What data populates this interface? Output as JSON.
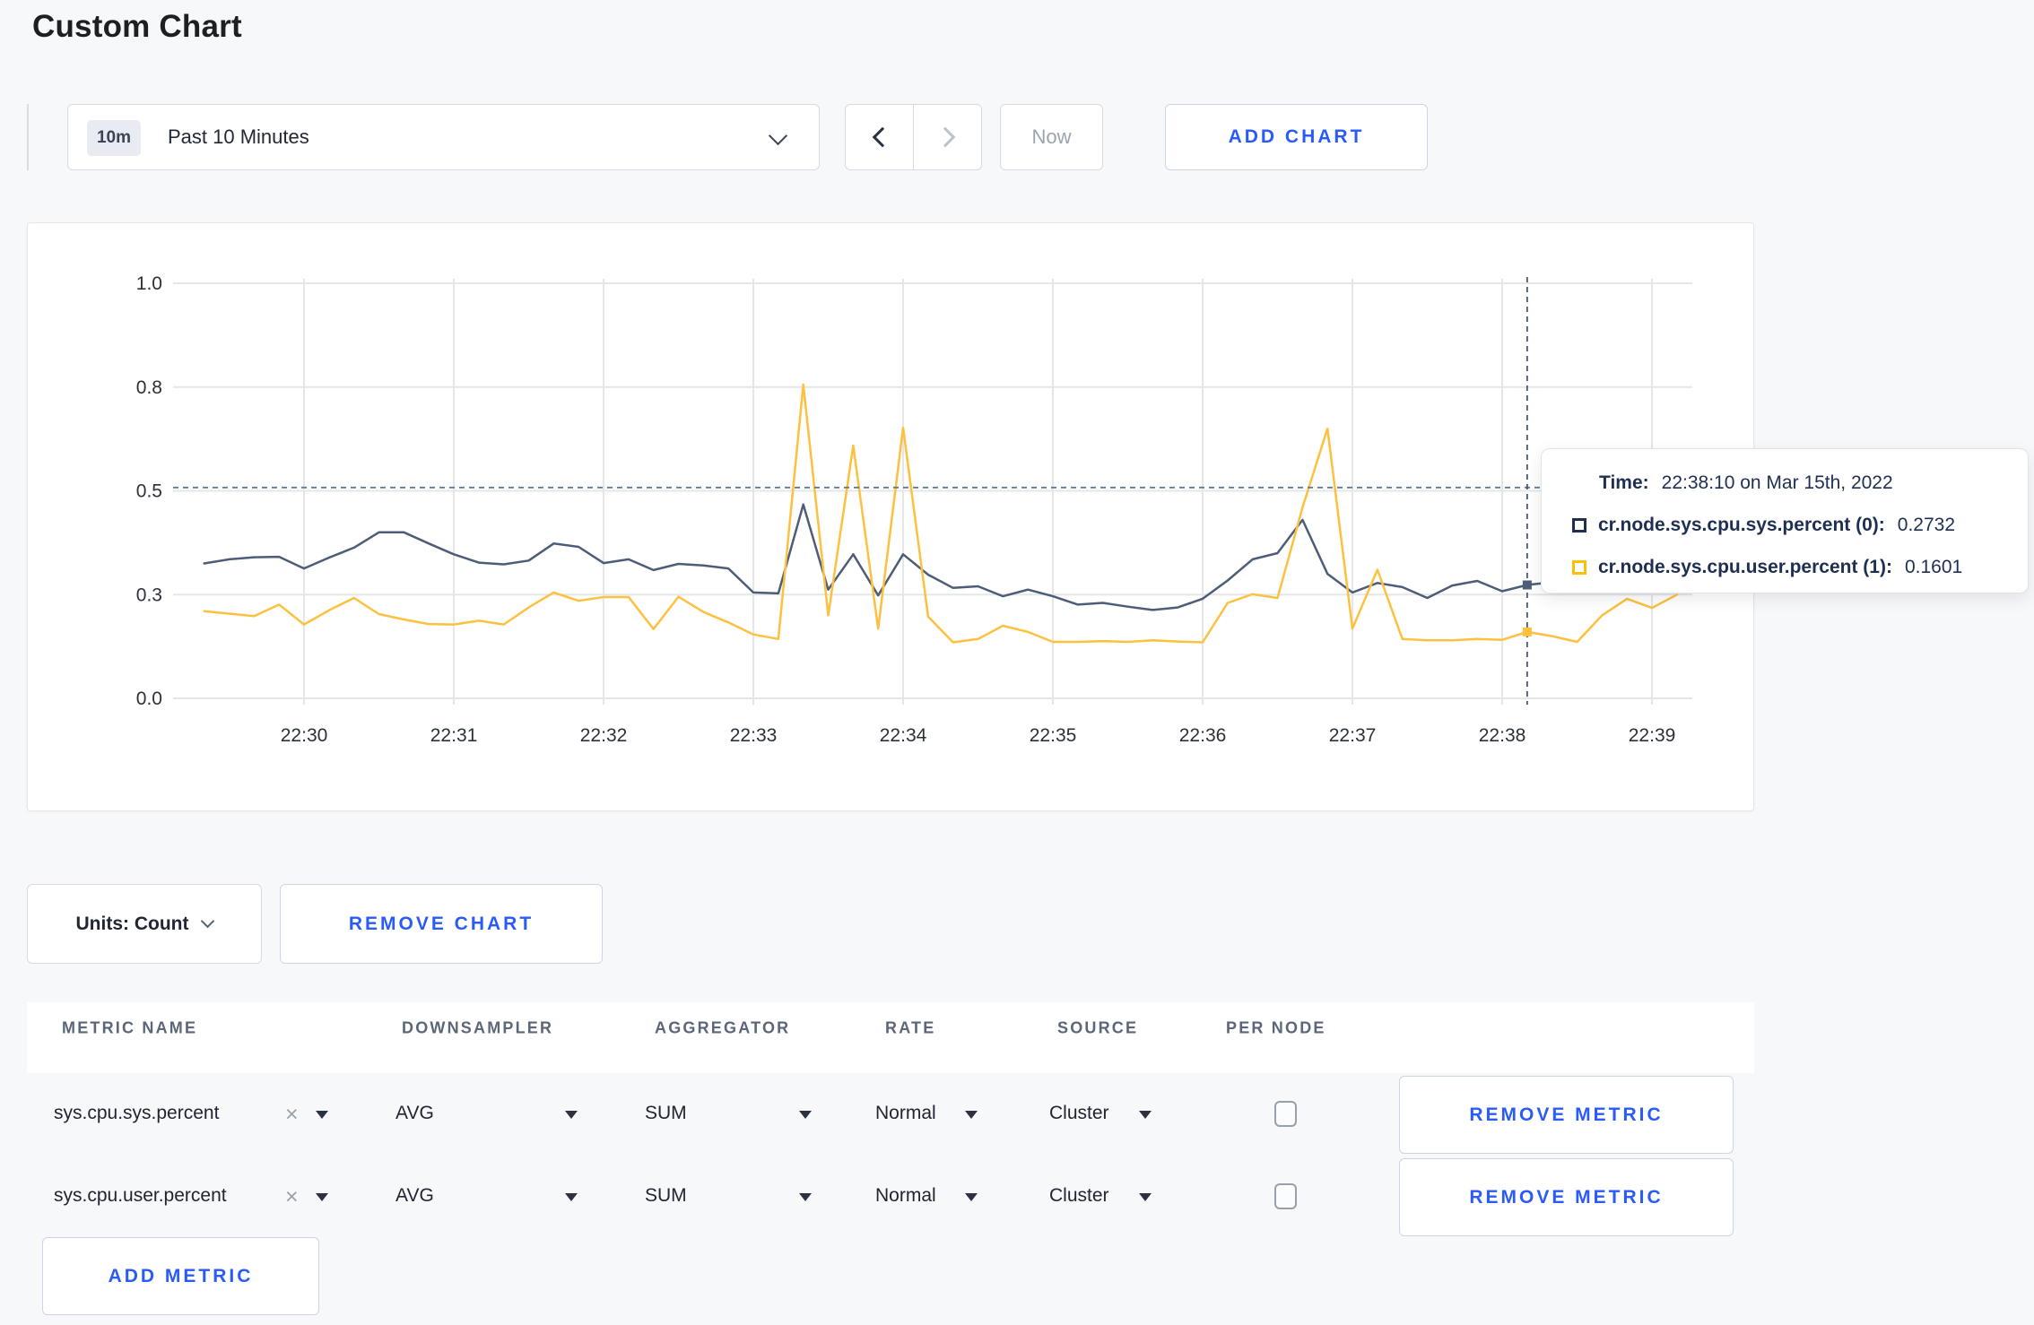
{
  "page": {
    "title": "Custom Chart"
  },
  "toolbar": {
    "range_badge": "10m",
    "range_label": "Past 10 Minutes",
    "now_label": "Now",
    "add_chart_label": "ADD CHART"
  },
  "chart_data": {
    "type": "line",
    "title": "",
    "x_start": "22:29:20",
    "x_step_seconds": 10,
    "x_tick_labels": [
      "22:30",
      "22:31",
      "22:32",
      "22:33",
      "22:34",
      "22:35",
      "22:36",
      "22:37",
      "22:38",
      "22:39"
    ],
    "y_ticks": [
      {
        "label": "0.0",
        "value": 0
      },
      {
        "label": "0.3",
        "value": 0.25
      },
      {
        "label": "0.5",
        "value": 0.5
      },
      {
        "label": "0.8",
        "value": 0.75
      },
      {
        "label": "1.0",
        "value": 1
      }
    ],
    "ylim": [
      0,
      1
    ],
    "grid": true,
    "legend_position": "tooltip",
    "series": [
      {
        "name": "cr.node.sys.cpu.sys.percent (0)",
        "color": "#4d5d78",
        "values": [
          0.325,
          0.335,
          0.34,
          0.341,
          0.313,
          0.339,
          0.363,
          0.4,
          0.4,
          0.373,
          0.347,
          0.327,
          0.323,
          0.332,
          0.373,
          0.365,
          0.326,
          0.335,
          0.309,
          0.324,
          0.32,
          0.313,
          0.255,
          0.253,
          0.467,
          0.262,
          0.347,
          0.248,
          0.347,
          0.298,
          0.266,
          0.27,
          0.246,
          0.262,
          0.246,
          0.226,
          0.23,
          0.221,
          0.213,
          0.219,
          0.24,
          0.284,
          0.335,
          0.35,
          0.43,
          0.3,
          0.255,
          0.278,
          0.268,
          0.242,
          0.272,
          0.283,
          0.258,
          0.2732,
          0.28,
          0.295,
          0.29,
          0.3,
          0.295,
          0.3
        ]
      },
      {
        "name": "cr.node.sys.cpu.user.percent (1)",
        "color": "#fdc13f",
        "values": [
          0.21,
          0.204,
          0.198,
          0.226,
          0.178,
          0.212,
          0.242,
          0.203,
          0.19,
          0.179,
          0.178,
          0.187,
          0.178,
          0.219,
          0.255,
          0.235,
          0.244,
          0.244,
          0.167,
          0.245,
          0.208,
          0.183,
          0.154,
          0.143,
          0.756,
          0.2,
          0.609,
          0.168,
          0.652,
          0.197,
          0.135,
          0.143,
          0.175,
          0.16,
          0.136,
          0.136,
          0.138,
          0.136,
          0.14,
          0.137,
          0.135,
          0.23,
          0.251,
          0.242,
          0.46,
          0.65,
          0.168,
          0.31,
          0.143,
          0.14,
          0.14,
          0.143,
          0.141,
          0.1601,
          0.15,
          0.136,
          0.2,
          0.24,
          0.218,
          0.25
        ]
      }
    ],
    "crosshair": {
      "x_index": 53,
      "time": "22:38:10",
      "mouse_y_value": 0.508,
      "point_values": [
        0.2732,
        0.1601
      ]
    }
  },
  "tooltip": {
    "time_label": "Time:",
    "time_value": "22:38:10 on Mar 15th, 2022",
    "rows": [
      {
        "label": "cr.node.sys.cpu.sys.percent (0):",
        "value": "0.2732",
        "color": "#1e2f52"
      },
      {
        "label": "cr.node.sys.cpu.user.percent (1):",
        "value": "0.1601",
        "color": "#fdc008"
      }
    ]
  },
  "chart_controls": {
    "units_label": "Units: Count",
    "remove_chart_label": "REMOVE CHART"
  },
  "metrics_table": {
    "headers": [
      "METRIC NAME",
      "DOWNSAMPLER",
      "AGGREGATOR",
      "RATE",
      "SOURCE",
      "PER NODE"
    ],
    "rows": [
      {
        "metric": "sys.cpu.sys.percent",
        "downsampler": "AVG",
        "aggregator": "SUM",
        "rate": "Normal",
        "source": "Cluster",
        "per_node_checked": false,
        "remove_label": "REMOVE METRIC"
      },
      {
        "metric": "sys.cpu.user.percent",
        "downsampler": "AVG",
        "aggregator": "SUM",
        "rate": "Normal",
        "source": "Cluster",
        "per_node_checked": false,
        "remove_label": "REMOVE METRIC"
      }
    ],
    "add_metric_label": "ADD METRIC"
  }
}
